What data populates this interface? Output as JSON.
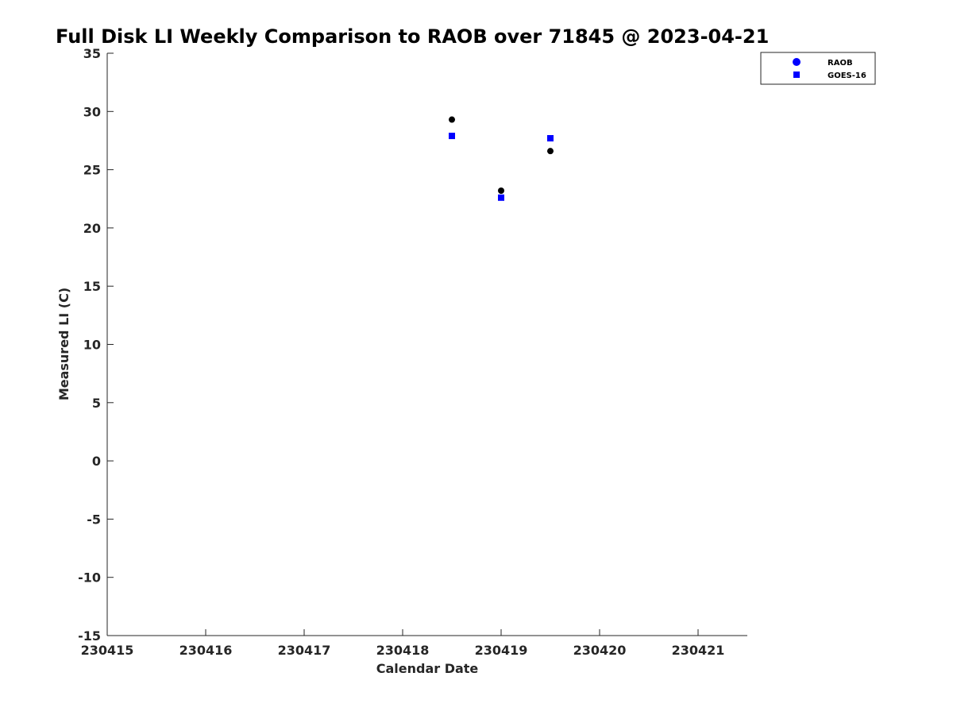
{
  "chart_data": {
    "type": "scatter",
    "title": "Full Disk LI Weekly Comparison to RAOB over 71845 @ 2023-04-21",
    "xlabel": "Calendar Date",
    "ylabel": "Measured LI (C)",
    "xlim": [
      "2023-04-15",
      "2023-04-21 12:00"
    ],
    "ylim": [
      -15,
      35
    ],
    "x_ticks": [
      {
        "value": "2023-04-15",
        "label": "230415"
      },
      {
        "value": "2023-04-16",
        "label": "230416"
      },
      {
        "value": "2023-04-17",
        "label": "230417"
      },
      {
        "value": "2023-04-18",
        "label": "230418"
      },
      {
        "value": "2023-04-19",
        "label": "230419"
      },
      {
        "value": "2023-04-20",
        "label": "230420"
      },
      {
        "value": "2023-04-21",
        "label": "230421"
      }
    ],
    "y_ticks": [
      -15,
      -10,
      -5,
      0,
      5,
      10,
      15,
      20,
      25,
      30,
      35
    ],
    "grid": false,
    "legend_position": "top-right",
    "series": [
      {
        "name": "RAOB",
        "marker": "circle",
        "color": "#000000",
        "legend_color": "#0000ff",
        "points": [
          {
            "x": "2023-04-18 12:00",
            "y": 29.3
          },
          {
            "x": "2023-04-19 00:00",
            "y": 23.2
          },
          {
            "x": "2023-04-19 12:00",
            "y": 26.6
          }
        ]
      },
      {
        "name": "GOES-16",
        "marker": "square",
        "color": "#0000ff",
        "legend_color": "#0000ff",
        "points": [
          {
            "x": "2023-04-18 12:00",
            "y": 27.9
          },
          {
            "x": "2023-04-19 00:00",
            "y": 22.6
          },
          {
            "x": "2023-04-19 12:00",
            "y": 27.7
          }
        ]
      }
    ]
  }
}
